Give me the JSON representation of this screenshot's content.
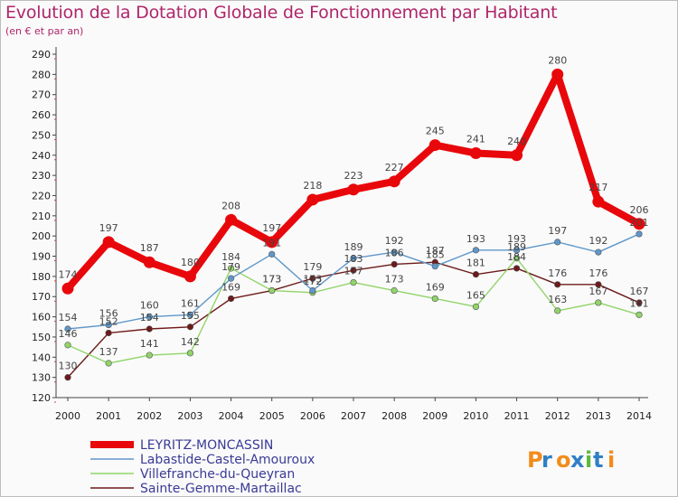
{
  "chart_data": {
    "type": "line",
    "title": "Evolution de la Dotation Globale de Fonctionnement par Habitant",
    "subtitle": "(en € et par an)",
    "xlabel": "",
    "ylabel": "",
    "x": [
      "2000",
      "2001",
      "2002",
      "2003",
      "2004",
      "2005",
      "2006",
      "2007",
      "2008",
      "2009",
      "2010",
      "2011",
      "2012",
      "2013",
      "2014"
    ],
    "ylim": [
      120,
      290
    ],
    "yticks": [
      120,
      130,
      140,
      150,
      160,
      170,
      180,
      190,
      200,
      210,
      220,
      230,
      240,
      250,
      260,
      270,
      280,
      290
    ],
    "grid": false,
    "legend_position": "bottom-left",
    "series": [
      {
        "name": "LEYRITZ-MONCASSIN",
        "color": "#e8070b",
        "values": [
          174,
          197,
          187,
          180,
          208,
          197,
          218,
          223,
          227,
          245,
          241,
          240,
          280,
          217,
          206
        ]
      },
      {
        "name": "Labastide-Castel-Amouroux",
        "color": "#5f97c9",
        "values": [
          154,
          156,
          160,
          161,
          179,
          191,
          173,
          189,
          192,
          185,
          193,
          193,
          197,
          192,
          201
        ]
      },
      {
        "name": "Villefranche-du-Queyran",
        "color": "#91d469",
        "values": [
          146,
          137,
          141,
          142,
          184,
          173,
          172,
          177,
          173,
          169,
          165,
          189,
          163,
          167,
          161
        ]
      },
      {
        "name": "Sainte-Gemme-Martaillac",
        "color": "#6d1a1a",
        "values": [
          130,
          152,
          154,
          155,
          169,
          173,
          179,
          183,
          186,
          187,
          181,
          184,
          176,
          176,
          167
        ]
      }
    ],
    "data_labels": [
      {
        "series": 0,
        "labels": [
          "174",
          "197",
          "187",
          "180",
          "208",
          "197",
          "218",
          "223",
          "227",
          "245",
          "241",
          "240",
          "280",
          "217",
          "206"
        ]
      },
      {
        "series": 1,
        "labels": [
          "154",
          "156",
          "160",
          "161",
          "179",
          "191",
          "173",
          "189",
          "192",
          "185",
          "193",
          "193",
          "197",
          "192",
          "201"
        ]
      },
      {
        "series": 2,
        "labels": [
          "146",
          "137",
          "141",
          "142",
          "184",
          "173",
          "172",
          "177",
          "173",
          "169",
          "165",
          "189",
          "163",
          "167",
          "161"
        ]
      },
      {
        "series": 3,
        "labels": [
          "130",
          "152",
          "154",
          "155",
          "169",
          "173",
          "179",
          "183",
          "186",
          "187",
          "181",
          "184",
          "176",
          "176",
          "167"
        ]
      }
    ]
  },
  "brand": {
    "text": "Proxiti"
  }
}
